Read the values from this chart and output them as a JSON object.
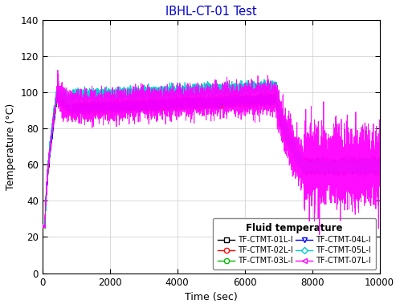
{
  "title": "IBHL-CT-01 Test",
  "xlabel": "Time (sec)",
  "ylabel": "Temperature (°C)",
  "xlim": [
    0,
    10000
  ],
  "ylim": [
    0,
    140
  ],
  "xticks": [
    0,
    2000,
    4000,
    6000,
    8000,
    10000
  ],
  "yticks": [
    0,
    20,
    40,
    60,
    80,
    100,
    120,
    140
  ],
  "title_color": "#0000CC",
  "background_color": "#ffffff",
  "grid_color": "#cccccc",
  "legend_title": "Fluid temperature",
  "series": [
    {
      "label": "TF-CTMT-01L-I",
      "color": "#000000",
      "marker": "s"
    },
    {
      "label": "TF-CTMT-02L-I",
      "color": "#FF0000",
      "marker": "o"
    },
    {
      "label": "TF-CTMT-03L-I",
      "color": "#00BB00",
      "marker": "o"
    },
    {
      "label": "TF-CTMT-04L-I",
      "color": "#0000FF",
      "marker": "v"
    },
    {
      "label": "TF-CTMT-05L-I",
      "color": "#00CCCC",
      "marker": "D"
    },
    {
      "label": "TF-CTMT-07L-I",
      "color": "#FF00FF",
      "marker": "<"
    }
  ],
  "n_points": 8000,
  "phase1_rise_end": 450,
  "phase1_peak": 99,
  "phase2_base": 91,
  "phase2_end": 6950,
  "phase3_end": 7750,
  "phase3_min": 59,
  "phase4_end": 10000,
  "phase4_final": 67
}
